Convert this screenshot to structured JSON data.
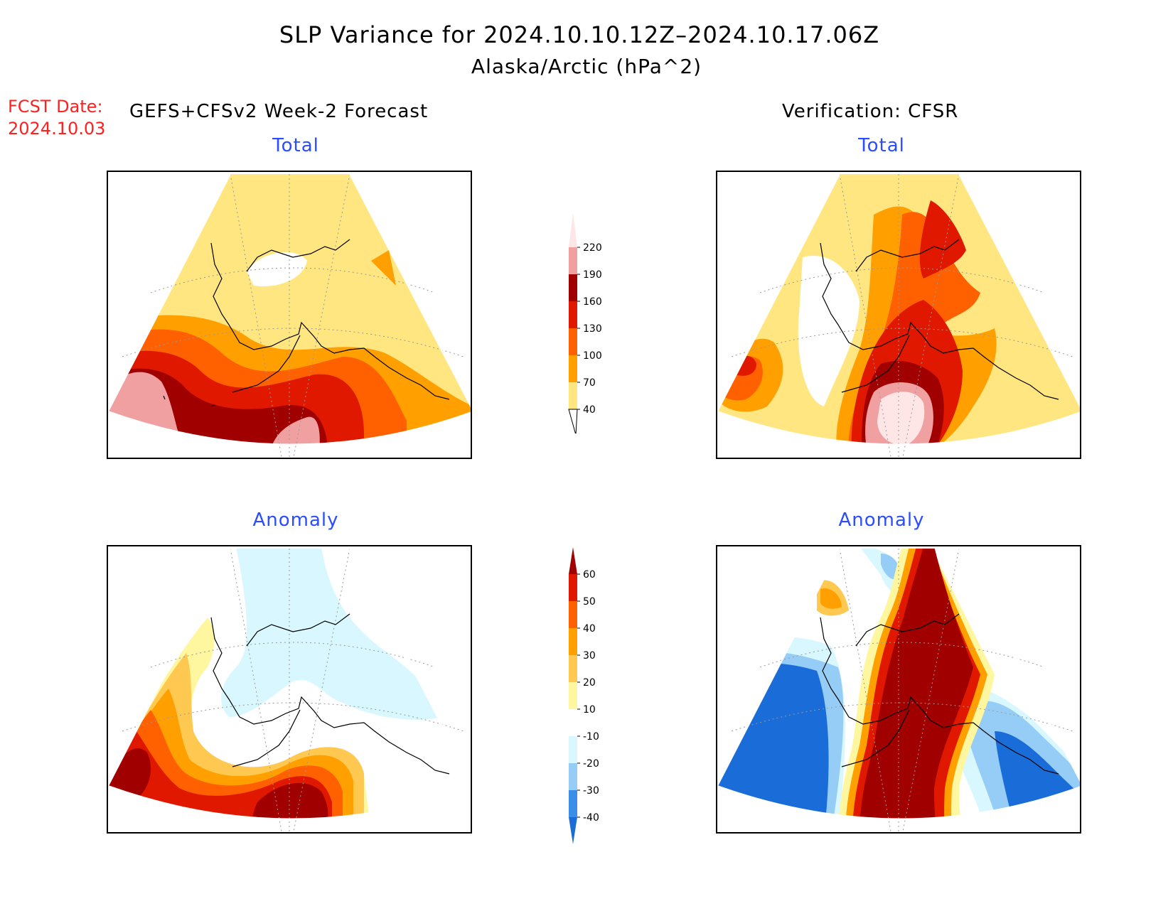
{
  "title": {
    "line1": "SLP Variance for 2024.10.10.12Z–2024.10.17.06Z",
    "line2": "Alaska/Arctic (hPa^2)"
  },
  "forecast": {
    "label": "FCST Date:",
    "date": "2024.10.03",
    "header": "GEFS+CFSv2 Week-2 Forecast"
  },
  "verification": {
    "header": "Verification: CFSR"
  },
  "panels": {
    "forecast_total": {
      "title": "Total"
    },
    "forecast_anomaly": {
      "title": "Anomaly"
    },
    "verification_total": {
      "title": "Total"
    },
    "verification_anomaly": {
      "title": "Anomaly"
    }
  },
  "total_colorbar": {
    "levels": [
      "40",
      "70",
      "100",
      "130",
      "160",
      "190",
      "220"
    ],
    "colors": [
      "#ffe680",
      "#ffa000",
      "#ff6000",
      "#e01800",
      "#a00000",
      "#f0a0a0",
      "#ffe6e6"
    ]
  },
  "anomaly_colorbar": {
    "levels": [
      "-40",
      "-30",
      "-20",
      "-10",
      "10",
      "20",
      "30",
      "40",
      "50",
      "60"
    ],
    "colors": [
      "#1a6cd8",
      "#3a8ee8",
      "#96cdf6",
      "#d8f7ff",
      "#ffffff",
      "#fff6a0",
      "#ffc850",
      "#ffa000",
      "#ff6000",
      "#e01800",
      "#a00000"
    ]
  }
}
